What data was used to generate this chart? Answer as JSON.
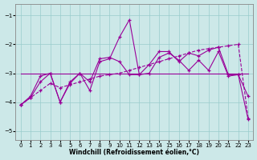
{
  "xlabel": "Windchill (Refroidissement éolien,°C)",
  "xlim": [
    0,
    23
  ],
  "ylim": [
    -5.3,
    -0.6
  ],
  "yticks": [
    -5,
    -4,
    -3,
    -2,
    -1
  ],
  "xticks": [
    0,
    1,
    2,
    3,
    4,
    5,
    6,
    7,
    8,
    9,
    10,
    11,
    12,
    13,
    14,
    15,
    16,
    17,
    18,
    19,
    20,
    21,
    22,
    23
  ],
  "bg_color": "#cce8e8",
  "line_color": "#990099",
  "series": {
    "s1": {
      "y": [
        -4.1,
        -3.8,
        -3.1,
        -3.0,
        -4.0,
        -3.3,
        -3.0,
        -3.6,
        -2.6,
        -2.5,
        -1.75,
        -1.15,
        -3.05,
        -2.7,
        -2.25,
        -2.25,
        -2.6,
        -2.3,
        -2.4,
        -2.2,
        -2.1,
        -3.05,
        -3.05,
        -3.8
      ],
      "marker": true,
      "dashed": false
    },
    "s2": {
      "y": [
        -4.1,
        -3.85,
        -3.3,
        -3.0,
        -4.0,
        -3.35,
        -3.0,
        -3.3,
        -2.5,
        -2.45,
        -2.6,
        -3.05,
        -3.05,
        -3.0,
        -2.45,
        -2.3,
        -2.55,
        -2.9,
        -2.55,
        -2.9,
        -2.25,
        -3.1,
        -3.05,
        -4.6
      ],
      "marker": true,
      "dashed": false
    },
    "s3": {
      "y": [
        -3.0,
        -3.0,
        -3.0,
        -3.0,
        -3.0,
        -3.0,
        -3.0,
        -3.0,
        -3.0,
        -3.0,
        -3.0,
        -3.0,
        -3.0,
        -3.0,
        -3.0,
        -3.0,
        -3.0,
        -3.0,
        -3.0,
        -3.0,
        -3.0,
        -3.0,
        -3.0,
        -3.0
      ],
      "marker": false,
      "dashed": false
    },
    "s4": {
      "y": [
        -4.1,
        -3.85,
        -3.6,
        -3.35,
        -3.5,
        -3.4,
        -3.3,
        -3.2,
        -3.1,
        -3.05,
        -3.0,
        -2.9,
        -2.8,
        -2.7,
        -2.6,
        -2.5,
        -2.4,
        -2.3,
        -2.2,
        -2.15,
        -2.1,
        -2.05,
        -2.0,
        -4.55
      ],
      "marker": true,
      "dashed": true
    }
  }
}
